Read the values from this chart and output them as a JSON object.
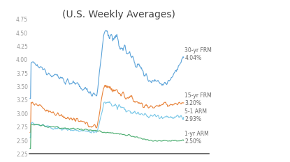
{
  "title": "(U.S. Weekly Averages)",
  "title_fontsize": 10,
  "ylim": [
    2.25,
    4.75
  ],
  "yticks": [
    2.25,
    2.5,
    2.75,
    3.0,
    3.25,
    3.5,
    3.75,
    4.0,
    4.25,
    4.5,
    4.75
  ],
  "colors": {
    "30yr_frm": "#5BA3D9",
    "15yr_frm": "#E8833A",
    "5_1_arm": "#7BC8E8",
    "1yr_arm": "#4AAD6F"
  },
  "legend": {
    "30yr_frm": {
      "label": "30-yr FRM",
      "value": "4.04%"
    },
    "15yr_frm": {
      "label": "15-yr FRM",
      "value": "3.20%"
    },
    "5_1_arm": {
      "label": "5-1 ARM",
      "value": "2.93%"
    },
    "1yr_arm": {
      "label": "1-yr ARM",
      "value": "2.50%"
    }
  },
  "bg_color": "#ffffff",
  "line_width": 0.8
}
